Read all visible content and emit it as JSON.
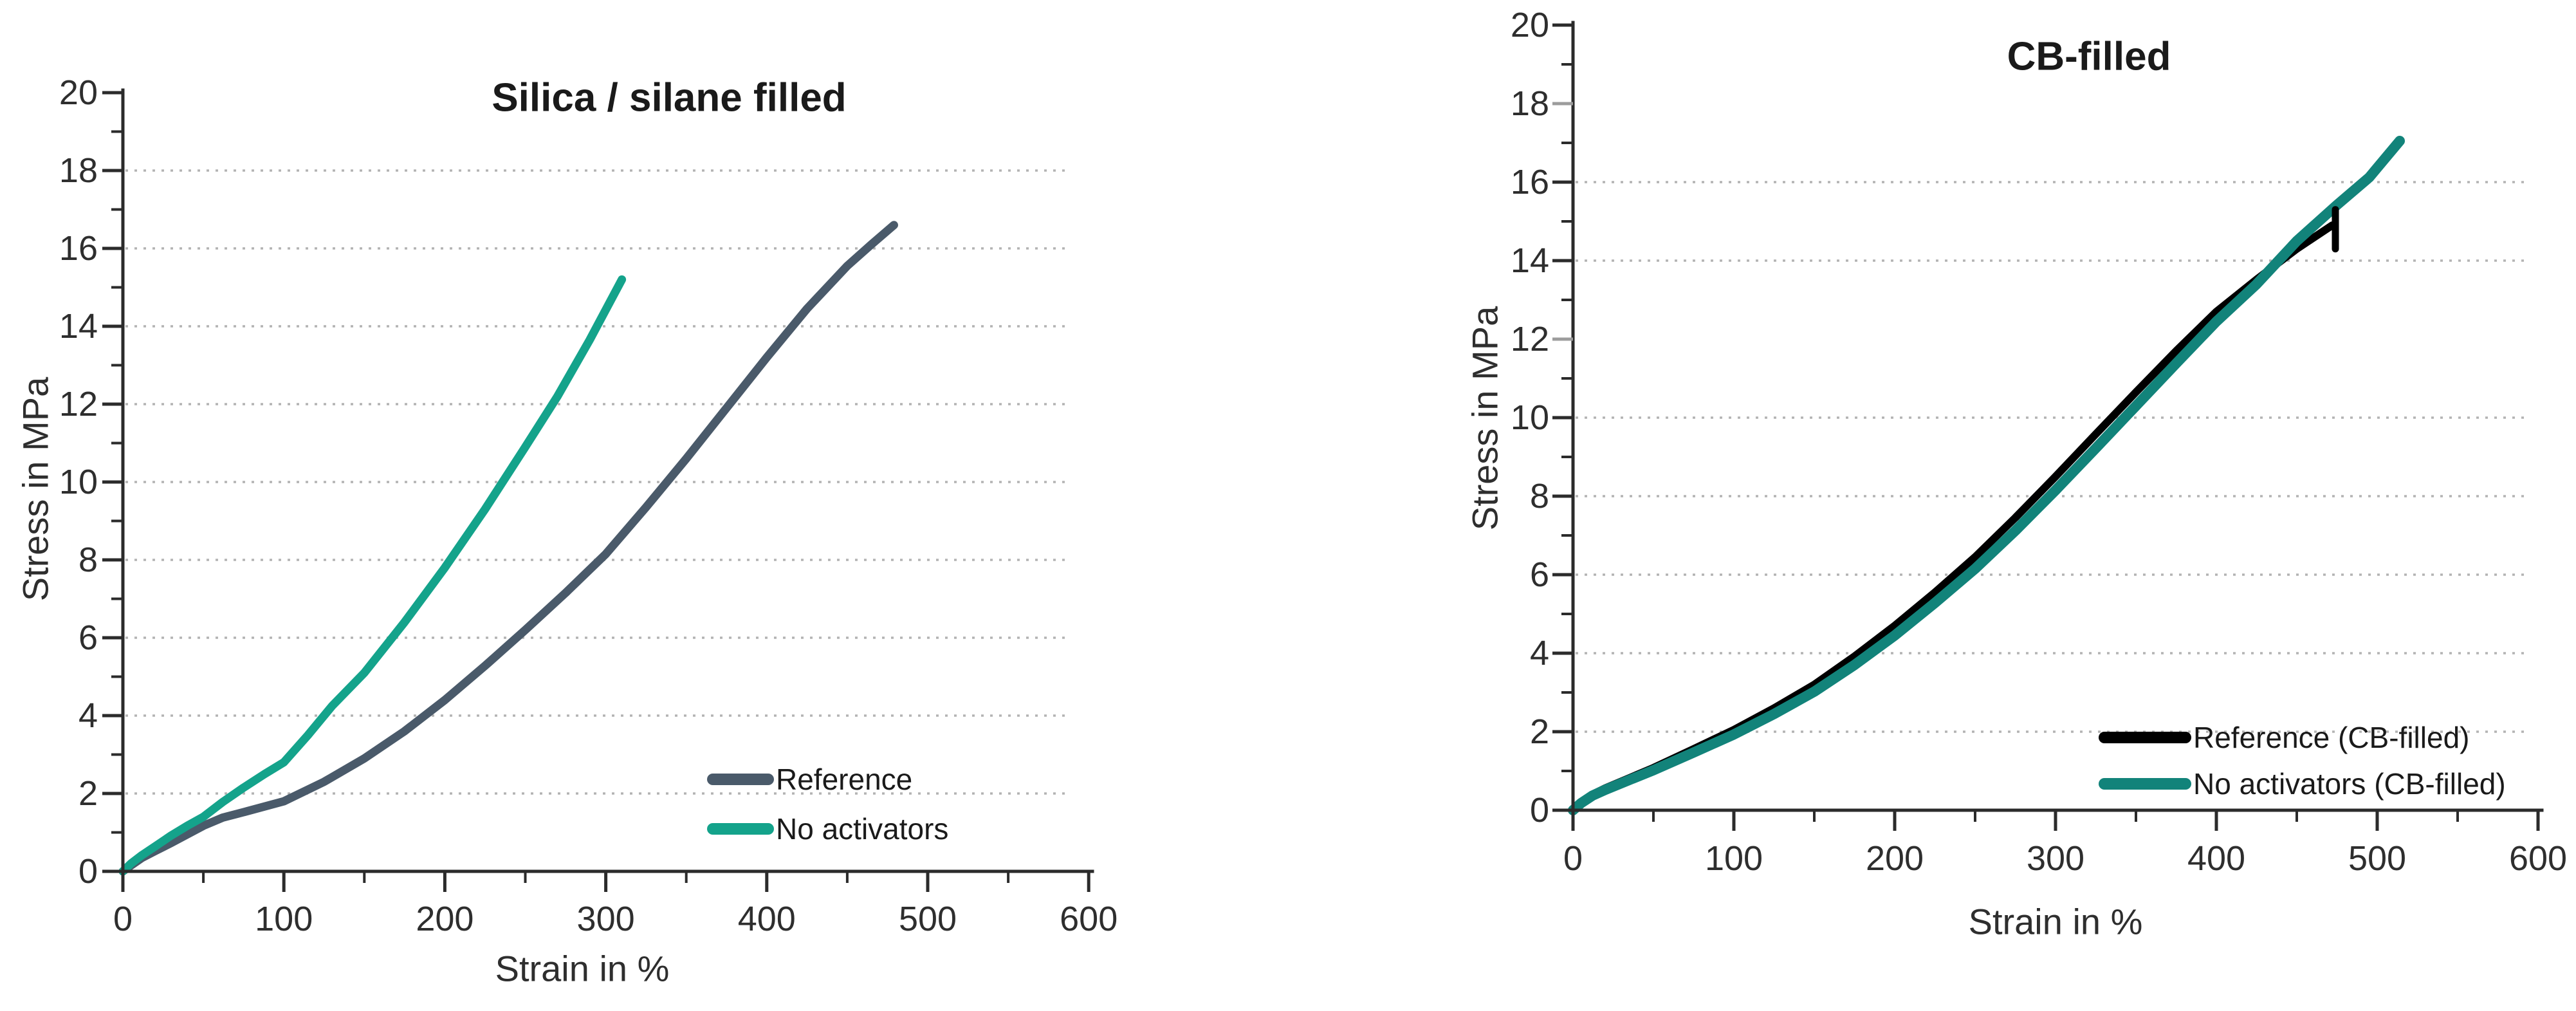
{
  "figure": {
    "background": "#ffffff"
  },
  "chart_data": [
    {
      "type": "line",
      "title": "Silica / silane filled",
      "xlabel": "Strain in %",
      "ylabel": "Stress in MPa",
      "xlim": [
        0,
        600
      ],
      "ylim": [
        0,
        20
      ],
      "grid": "dotted-horizontal",
      "legend_position": "lower right",
      "x_ticks": [
        0,
        100,
        200,
        300,
        400,
        500,
        600
      ],
      "x_tick_labels": [
        "0",
        "100",
        "200",
        "300",
        "400",
        "500",
        "600"
      ],
      "x_minor_ticks": [
        50,
        150,
        250,
        350,
        450,
        550
      ],
      "y_ticks": [
        0,
        2,
        4,
        6,
        8,
        10,
        12,
        14,
        16,
        18,
        20
      ],
      "y_tick_labels": [
        "0",
        "2",
        "4",
        "6",
        "8",
        "10",
        "12",
        "14",
        "16",
        "18",
        "20"
      ],
      "y_minor_ticks": [
        1,
        3,
        5,
        7,
        9,
        11,
        13,
        15,
        17,
        19
      ],
      "y_gridlines": [
        2,
        4,
        6,
        8,
        10,
        12,
        14,
        16,
        18
      ],
      "y_faded_ticks": [],
      "series": [
        {
          "name": "Reference",
          "color": "#4A5A6A",
          "width": 13,
          "points": [
            [
              0,
              0
            ],
            [
              5,
              0.15
            ],
            [
              12,
              0.35
            ],
            [
              20,
              0.52
            ],
            [
              30,
              0.73
            ],
            [
              40,
              0.95
            ],
            [
              50,
              1.17
            ],
            [
              62,
              1.38
            ],
            [
              75,
              1.52
            ],
            [
              100,
              1.8
            ],
            [
              125,
              2.3
            ],
            [
              150,
              2.9
            ],
            [
              175,
              3.6
            ],
            [
              200,
              4.4
            ],
            [
              225,
              5.28
            ],
            [
              250,
              6.2
            ],
            [
              275,
              7.15
            ],
            [
              300,
              8.15
            ],
            [
              325,
              9.35
            ],
            [
              350,
              10.6
            ],
            [
              375,
              11.9
            ],
            [
              400,
              13.2
            ],
            [
              425,
              14.45
            ],
            [
              450,
              15.55
            ],
            [
              465,
              16.1
            ],
            [
              479,
              16.6
            ]
          ]
        },
        {
          "name": "No activators",
          "color": "#14A38B",
          "width": 13,
          "points": [
            [
              0,
              0
            ],
            [
              5,
              0.2
            ],
            [
              12,
              0.42
            ],
            [
              20,
              0.64
            ],
            [
              30,
              0.92
            ],
            [
              40,
              1.17
            ],
            [
              50,
              1.4
            ],
            [
              62,
              1.78
            ],
            [
              75,
              2.15
            ],
            [
              88,
              2.5
            ],
            [
              100,
              2.8
            ],
            [
              115,
              3.5
            ],
            [
              130,
              4.25
            ],
            [
              150,
              5.1
            ],
            [
              175,
              6.4
            ],
            [
              200,
              7.8
            ],
            [
              225,
              9.3
            ],
            [
              250,
              10.9
            ],
            [
              270,
              12.2
            ],
            [
              290,
              13.65
            ],
            [
              310,
              15.2
            ]
          ]
        }
      ],
      "legend": [
        "Reference",
        "No activators"
      ]
    },
    {
      "type": "line",
      "title": "CB-filled",
      "xlabel": "Strain in %",
      "ylabel": "Stress in MPa",
      "xlim": [
        0,
        600
      ],
      "ylim": [
        0,
        20
      ],
      "grid": "dotted-horizontal",
      "legend_position": "lower right",
      "x_ticks": [
        0,
        100,
        200,
        300,
        400,
        500,
        600
      ],
      "x_tick_labels": [
        "0",
        "100",
        "200",
        "300",
        "400",
        "500",
        "600"
      ],
      "x_minor_ticks": [
        50,
        150,
        250,
        350,
        450,
        550
      ],
      "y_ticks": [
        0,
        2,
        4,
        6,
        8,
        10,
        12,
        14,
        16,
        18,
        20
      ],
      "y_tick_labels": [
        "0",
        "2",
        "4",
        "6",
        "8",
        "10",
        "12",
        "14",
        "16",
        "18",
        "20"
      ],
      "y_minor_ticks": [
        1,
        3,
        5,
        7,
        9,
        11,
        13,
        15,
        17,
        19
      ],
      "y_gridlines": [
        2,
        4,
        6,
        8,
        10,
        14,
        16
      ],
      "y_faded_ticks": [
        12,
        18
      ],
      "series": [
        {
          "name": "Reference (CB-filled)",
          "color": "#000000",
          "width": 12,
          "points": [
            [
              0,
              0
            ],
            [
              5,
              0.2
            ],
            [
              12,
              0.4
            ],
            [
              20,
              0.56
            ],
            [
              35,
              0.82
            ],
            [
              50,
              1.08
            ],
            [
              75,
              1.56
            ],
            [
              100,
              2.05
            ],
            [
              125,
              2.6
            ],
            [
              150,
              3.2
            ],
            [
              175,
              3.92
            ],
            [
              200,
              4.7
            ],
            [
              225,
              5.55
            ],
            [
              250,
              6.45
            ],
            [
              275,
              7.45
            ],
            [
              300,
              8.5
            ],
            [
              325,
              9.58
            ],
            [
              350,
              10.65
            ],
            [
              375,
              11.7
            ],
            [
              400,
              12.7
            ],
            [
              425,
              13.52
            ],
            [
              450,
              14.3
            ],
            [
              472,
              14.9
            ]
          ]
        },
        {
          "name": "No activators (CB-filled)",
          "color": "#12837A",
          "width": 16,
          "points": [
            [
              0,
              0
            ],
            [
              5,
              0.18
            ],
            [
              12,
              0.37
            ],
            [
              20,
              0.52
            ],
            [
              35,
              0.77
            ],
            [
              50,
              1.02
            ],
            [
              75,
              1.47
            ],
            [
              100,
              1.93
            ],
            [
              125,
              2.45
            ],
            [
              150,
              3.02
            ],
            [
              175,
              3.7
            ],
            [
              200,
              4.45
            ],
            [
              225,
              5.28
            ],
            [
              250,
              6.15
            ],
            [
              275,
              7.12
            ],
            [
              300,
              8.15
            ],
            [
              325,
              9.22
            ],
            [
              350,
              10.3
            ],
            [
              375,
              11.38
            ],
            [
              400,
              12.45
            ],
            [
              425,
              13.4
            ],
            [
              450,
              14.5
            ],
            [
              475,
              15.42
            ],
            [
              495,
              16.12
            ],
            [
              514,
              17.05
            ]
          ]
        }
      ],
      "end_marker": {
        "series": "Reference (CB-filled)",
        "x": 474,
        "y_top": 15.3,
        "y_bottom": 14.3,
        "color": "#000000"
      },
      "legend": [
        "Reference (CB-filled)",
        "No activators (CB-filled)"
      ]
    }
  ]
}
